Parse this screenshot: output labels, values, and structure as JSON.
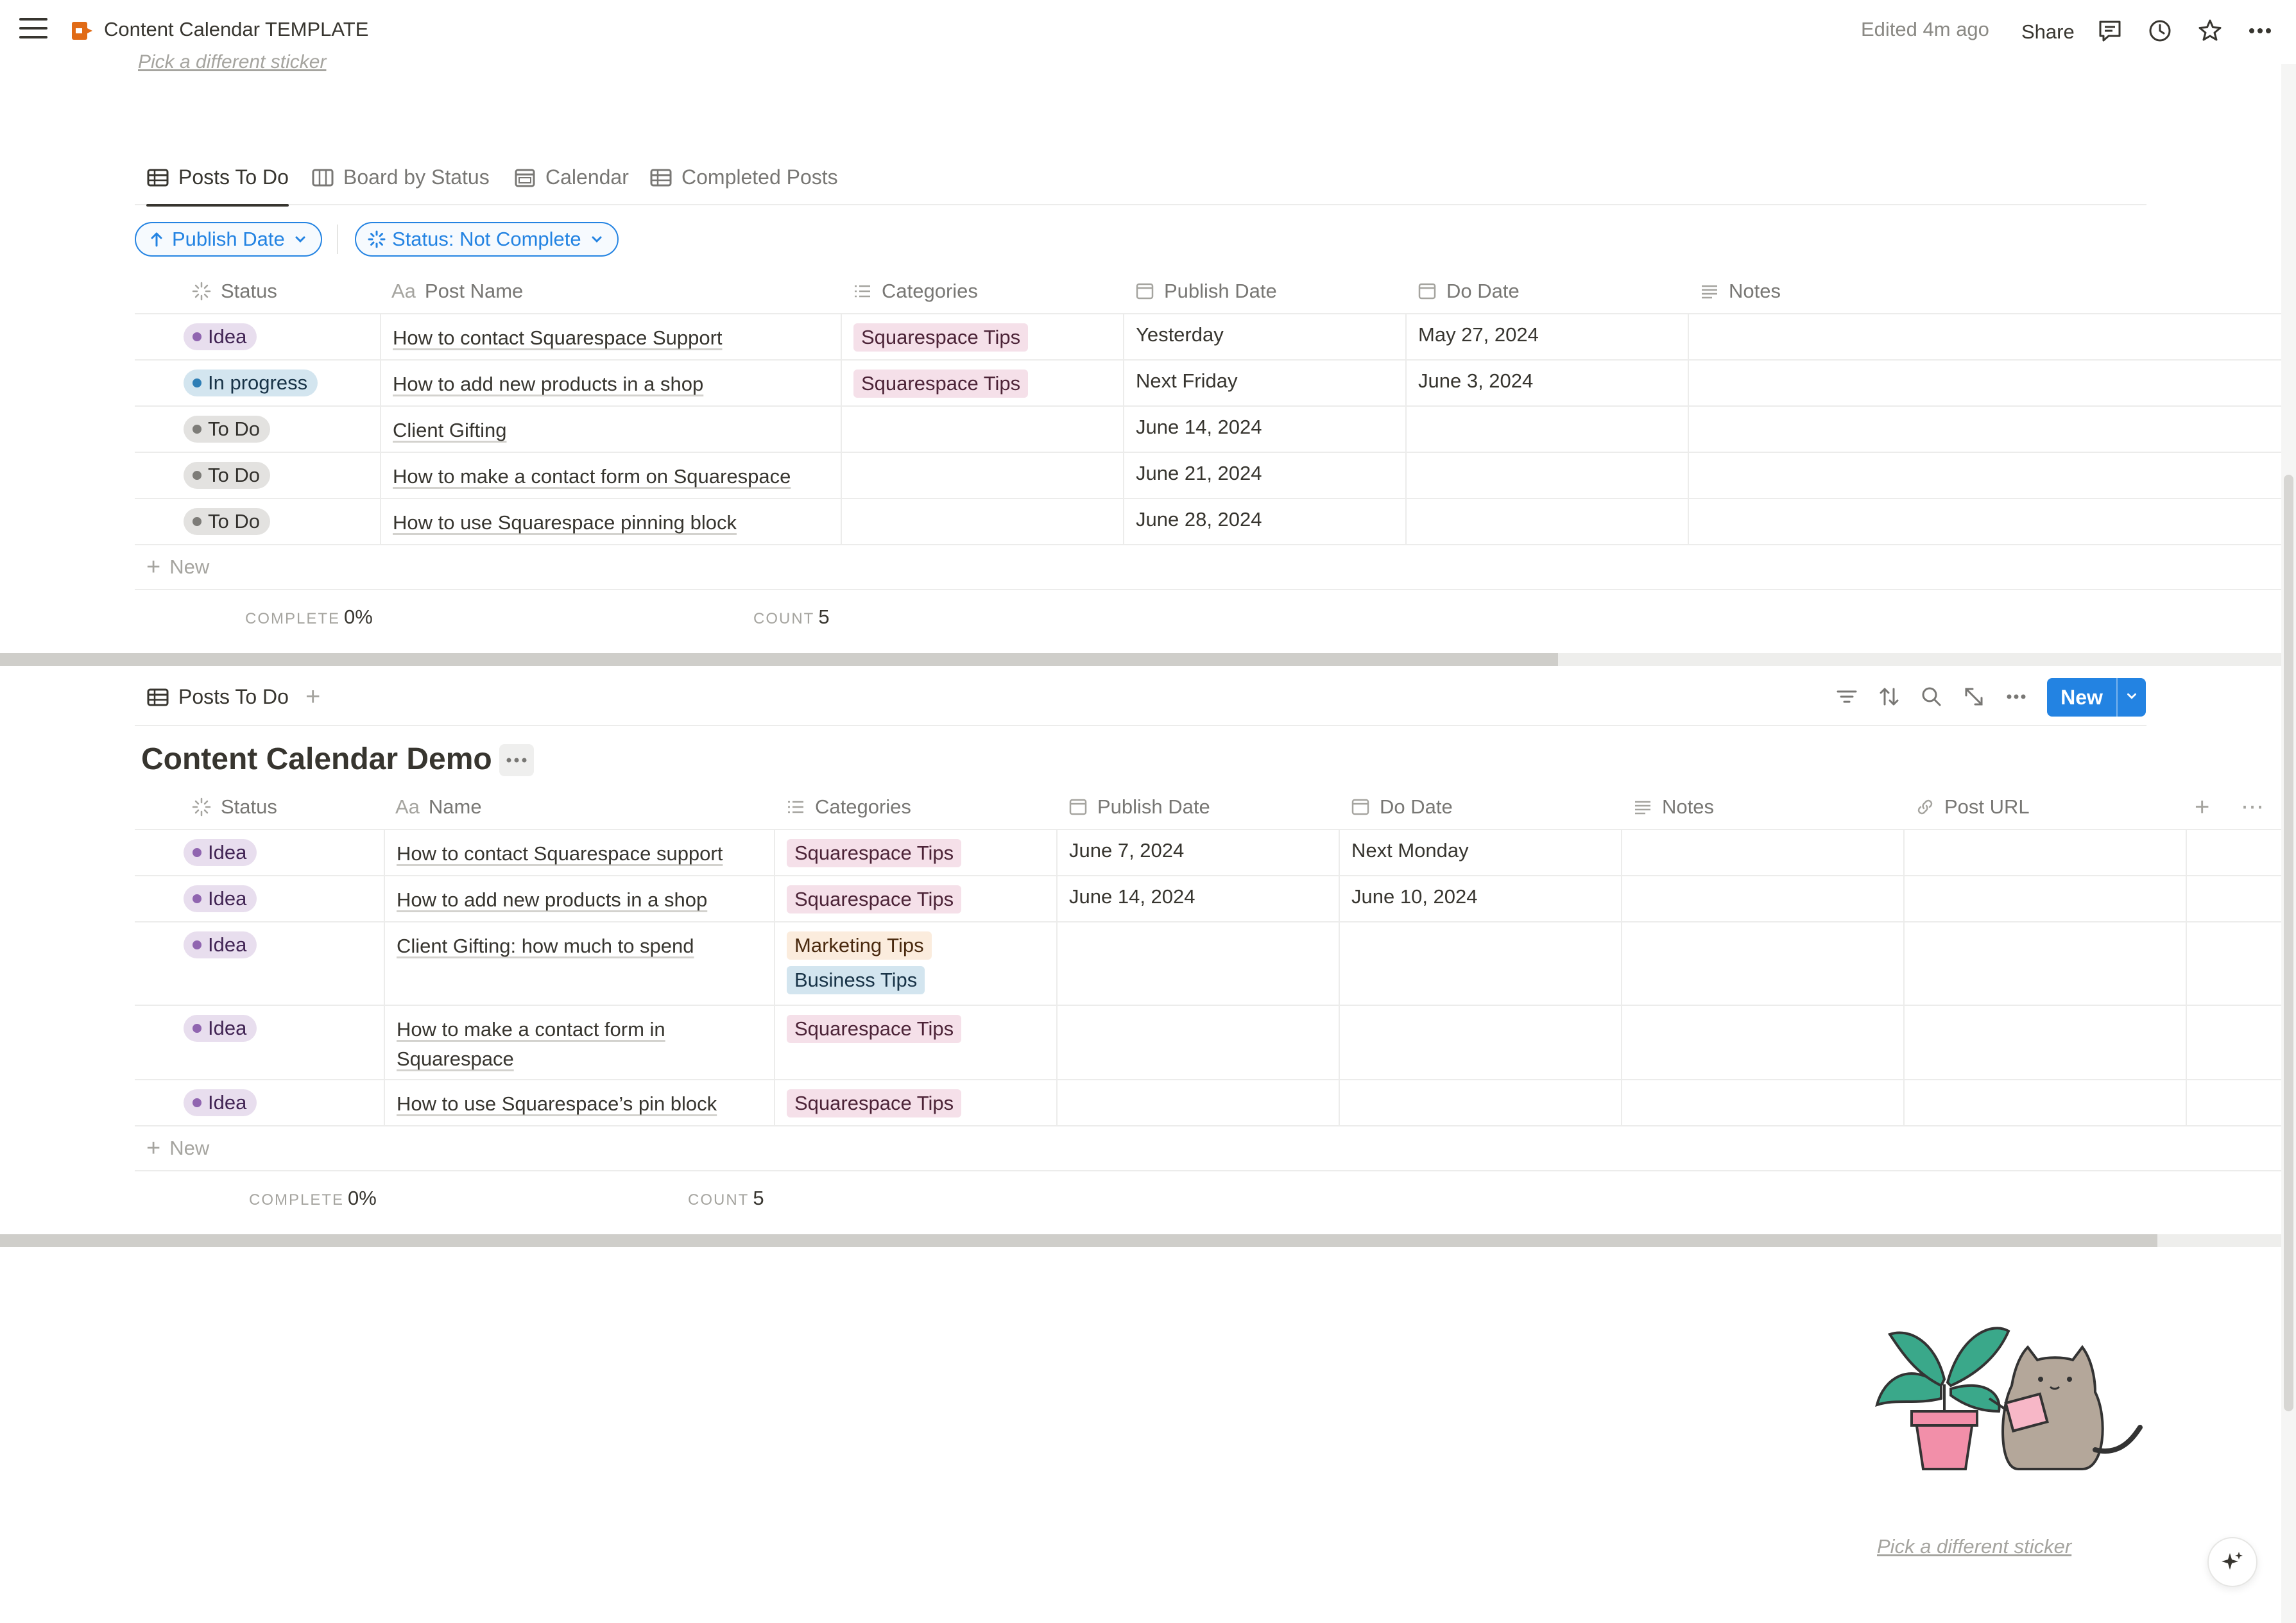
{
  "topbar": {
    "title": "Content Calendar TEMPLATE",
    "edited": "Edited 4m ago",
    "share": "Share"
  },
  "sticker_link_top": "Pick a different sticker",
  "tabs": [
    {
      "label": "Posts To Do",
      "icon": "table-icon",
      "active": true
    },
    {
      "label": "Board by Status",
      "icon": "board-icon",
      "active": false
    },
    {
      "label": "Calendar",
      "icon": "calendar-icon",
      "active": false
    },
    {
      "label": "Completed Posts",
      "icon": "table-icon",
      "active": false
    }
  ],
  "filters": {
    "sort": "Publish Date",
    "status": "Status: Not Complete"
  },
  "table1": {
    "headers": {
      "status": "Status",
      "name": "Post Name",
      "categories": "Categories",
      "publish": "Publish Date",
      "do": "Do Date",
      "notes": "Notes"
    },
    "rows": [
      {
        "status": "Idea",
        "name": "How to contact Squarespace Support",
        "category": "Squarespace Tips",
        "publish": "Yesterday",
        "do": "May 27, 2024"
      },
      {
        "status": "In progress",
        "name": "How to add new products in a shop",
        "category": "Squarespace Tips",
        "publish": "Next Friday",
        "do": "June 3, 2024"
      },
      {
        "status": "To Do",
        "name": "Client Gifting",
        "category": "",
        "publish": "June 14, 2024",
        "do": ""
      },
      {
        "status": "To Do",
        "name": "How to make a contact form on Squarespace",
        "category": "",
        "publish": "June 21, 2024",
        "do": ""
      },
      {
        "status": "To Do",
        "name": "How to use Squarespace pinning block",
        "category": "",
        "publish": "June 28, 2024",
        "do": ""
      }
    ],
    "new_label": "New",
    "complete_label": "COMPLETE",
    "complete_value": "0%",
    "count_label": "COUNT",
    "count_value": "5"
  },
  "view2": {
    "tab_label": "Posts To Do",
    "new_button": "New",
    "title": "Content Calendar Demo"
  },
  "table2": {
    "headers": {
      "status": "Status",
      "name": "Name",
      "categories": "Categories",
      "publish": "Publish Date",
      "do": "Do Date",
      "notes": "Notes",
      "url": "Post URL"
    },
    "rows": [
      {
        "status": "Idea",
        "name": "How to contact Squarespace support",
        "categories": [
          "Squarespace Tips"
        ],
        "publish": "June 7, 2024",
        "do": "Next Monday"
      },
      {
        "status": "Idea",
        "name": "How to add new products in a shop",
        "categories": [
          "Squarespace Tips"
        ],
        "publish": "June 14, 2024",
        "do": "June 10, 2024"
      },
      {
        "status": "Idea",
        "name": "Client Gifting: how much to spend",
        "categories": [
          "Marketing Tips",
          "Business Tips"
        ],
        "publish": "",
        "do": ""
      },
      {
        "status": "Idea",
        "name": "How to make a contact form in Squarespace",
        "categories": [
          "Squarespace Tips"
        ],
        "publish": "",
        "do": ""
      },
      {
        "status": "Idea",
        "name": "How to use Squarespace’s pin block",
        "categories": [
          "Squarespace Tips"
        ],
        "publish": "",
        "do": ""
      }
    ],
    "new_label": "New",
    "complete_label": "COMPLETE",
    "complete_value": "0%",
    "count_label": "COUNT",
    "count_value": "5"
  },
  "sticker_link": "Pick a different sticker",
  "colors": {
    "accent": "#2383e2",
    "idea_bg": "#e8deee",
    "progress_bg": "#d3e5ef",
    "todo_bg": "#e3e2e0",
    "pink_tag": "#f5e0e9",
    "yellow_tag": "#fbecdd",
    "blue_tag": "#d3e5ef"
  }
}
